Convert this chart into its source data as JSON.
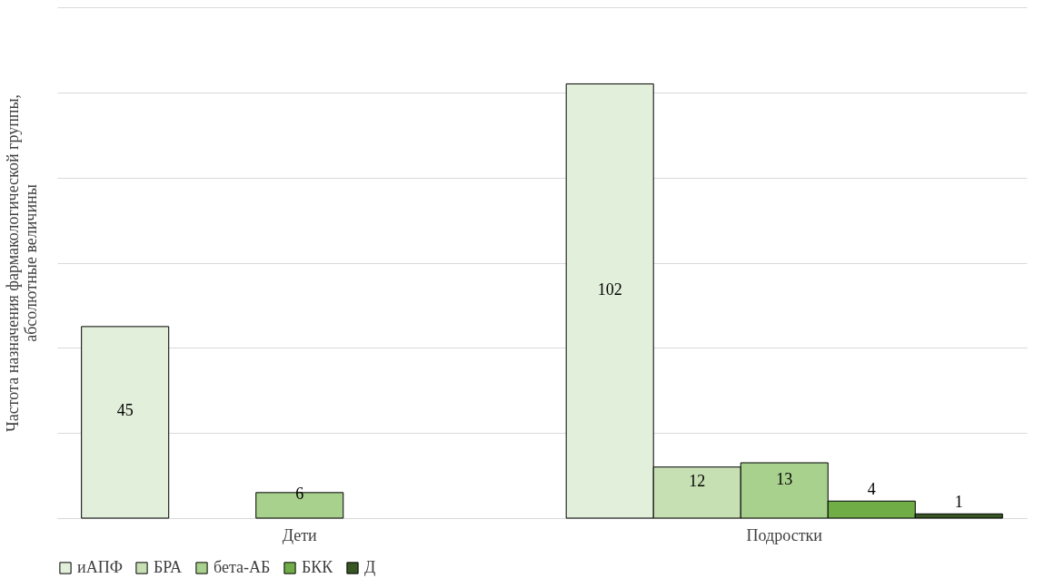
{
  "chart_data": {
    "type": "bar",
    "ylabel": "Частота назначения фармакологической группы, абсолютные величины",
    "categories": [
      "Дети",
      "Подростки"
    ],
    "series": [
      {
        "name": "иАПФ",
        "color": "#e2efda",
        "values": [
          45,
          102
        ]
      },
      {
        "name": "БРА",
        "color": "#c6e0b4",
        "values": [
          null,
          12
        ]
      },
      {
        "name": "бета-АБ",
        "color": "#a9d18e",
        "values": [
          6,
          13
        ]
      },
      {
        "name": "БКК",
        "color": "#70ad47",
        "values": [
          null,
          4
        ]
      },
      {
        "name": "Д",
        "color": "#375623",
        "values": [
          null,
          1
        ]
      }
    ],
    "ylim": [
      0,
      120
    ],
    "yticks": [
      {
        "value": 0,
        "label": null
      },
      {
        "value": 20,
        "label": null
      },
      {
        "value": 40,
        "label": null
      },
      {
        "value": 60,
        "label": null
      },
      {
        "value": 80,
        "label": null
      },
      {
        "value": 100,
        "label": null
      },
      {
        "value": 120,
        "label": null
      }
    ],
    "tick_labels": "x",
    "grid": "y",
    "legend": "bottom",
    "data_labels": true
  }
}
